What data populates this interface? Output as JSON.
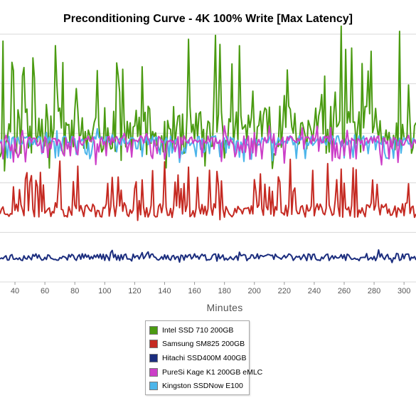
{
  "chart_data": {
    "type": "line",
    "title": "Preconditioning Curve - 4K 100% Write [Max Latency]",
    "xlabel": "Minutes",
    "ylabel": "",
    "xlim": [
      30,
      308
    ],
    "ylim": [
      0,
      100
    ],
    "x_ticks": [
      40,
      60,
      80,
      100,
      120,
      140,
      160,
      180,
      200,
      220,
      240,
      260,
      280,
      300
    ],
    "grid": true,
    "legend_position": "bottom-center",
    "series": [
      {
        "name": "Intel SSD 710 200GB",
        "color": "#4b9b12",
        "base": 61,
        "amp": 10,
        "spike": 28,
        "spikeProb": 0.18,
        "dipProb": 0.12,
        "dip": 8,
        "seed": 11
      },
      {
        "name": "Samsung SM825 200GB",
        "color": "#c52a22",
        "base": 29,
        "amp": 3,
        "spike": 14,
        "spikeProb": 0.15,
        "dipProb": 0.05,
        "dip": 2,
        "seed": 23
      },
      {
        "name": "Hitachi SSD400M 400GB",
        "color": "#1b2d7e",
        "base": 10,
        "amp": 1.4,
        "spike": 1.5,
        "spikeProb": 0.08,
        "dipProb": 0.05,
        "dip": 1,
        "seed": 37
      },
      {
        "name": "PureSi Kage K1 200GB eMLC",
        "color": "#cc3fc8",
        "base": 57,
        "amp": 2,
        "spike": 4,
        "spikeProb": 0.05,
        "dipProb": 0.25,
        "dip": 7,
        "seed": 49
      },
      {
        "name": "Kingston SSDNow E100",
        "color": "#4db5ea",
        "base": 57,
        "amp": 2,
        "spike": 3,
        "spikeProb": 0.06,
        "dipProb": 0.2,
        "dip": 6,
        "seed": 61
      }
    ]
  }
}
